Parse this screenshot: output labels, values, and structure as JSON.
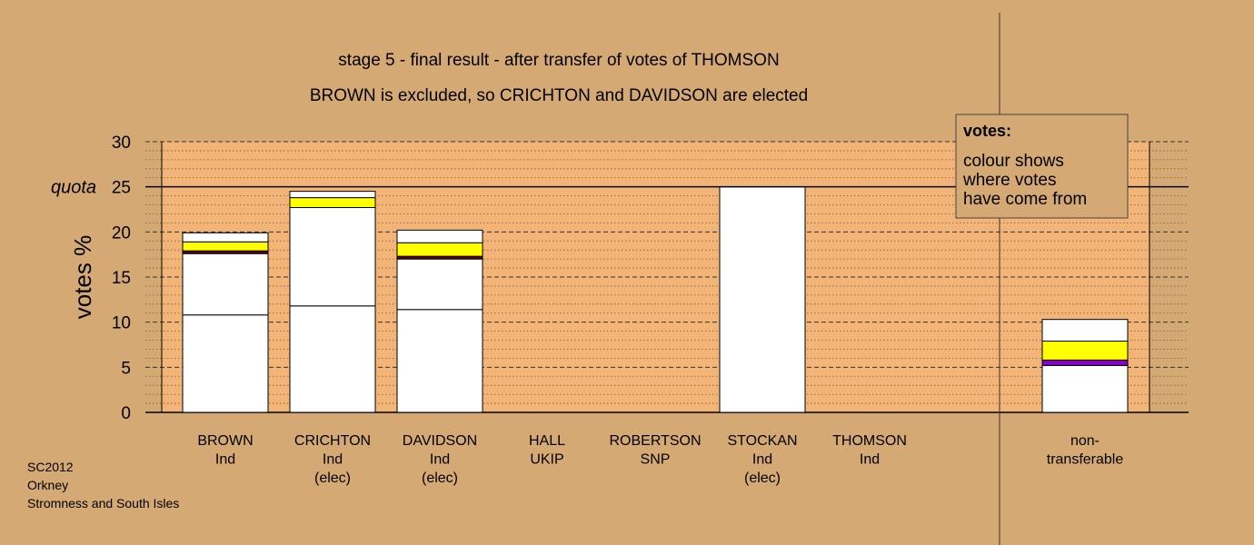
{
  "chart_data": {
    "type": "bar",
    "title": "stage 5 - final result - after transfer of votes of THOMSON",
    "subtitle": "BROWN is excluded, so CRICHTON and DAVIDSON are elected",
    "ylabel": "votes %",
    "ylim": [
      0,
      30
    ],
    "yticks": [
      0,
      5,
      10,
      15,
      20,
      25,
      30
    ],
    "quota": {
      "label": "quota",
      "value": 25
    },
    "grid": true,
    "legend": {
      "position": "top-right",
      "title": "votes:",
      "lines": [
        "colour shows",
        "where votes",
        "have come from"
      ]
    },
    "colors": {
      "background": "#d4a974",
      "plot": "#f2b477",
      "white": "#ffffff",
      "yellow": "#ffff00",
      "purple": "#8800cc",
      "darkred": "#660000"
    },
    "categories": [
      {
        "name": "BROWN",
        "party": "Ind",
        "status": ""
      },
      {
        "name": "CRICHTON",
        "party": "Ind",
        "status": "(elec)"
      },
      {
        "name": "DAVIDSON",
        "party": "Ind",
        "status": "(elec)"
      },
      {
        "name": "HALL",
        "party": "UKIP",
        "status": ""
      },
      {
        "name": "ROBERTSON",
        "party": "SNP",
        "status": ""
      },
      {
        "name": "STOCKAN",
        "party": "Ind",
        "status": "(elec)"
      },
      {
        "name": "THOMSON",
        "party": "Ind",
        "status": ""
      },
      {
        "name": "non-",
        "party": "transferable",
        "status": ""
      }
    ],
    "bars": [
      {
        "segments": [
          {
            "v": 10.8,
            "c": "white"
          },
          {
            "v": 6.8,
            "c": "white"
          },
          {
            "v": 0.3,
            "c": "darkred"
          },
          {
            "v": 1.0,
            "c": "yellow"
          },
          {
            "v": 1.0,
            "c": "white"
          }
        ]
      },
      {
        "segments": [
          {
            "v": 11.8,
            "c": "white"
          },
          {
            "v": 10.9,
            "c": "white"
          },
          {
            "v": 1.1,
            "c": "yellow"
          },
          {
            "v": 0.7,
            "c": "white"
          }
        ]
      },
      {
        "segments": [
          {
            "v": 11.4,
            "c": "white"
          },
          {
            "v": 5.6,
            "c": "white"
          },
          {
            "v": 0.3,
            "c": "darkred"
          },
          {
            "v": 1.5,
            "c": "yellow"
          },
          {
            "v": 1.4,
            "c": "white"
          }
        ]
      },
      {
        "segments": []
      },
      {
        "segments": []
      },
      {
        "segments": [
          {
            "v": 25.0,
            "c": "white"
          }
        ]
      },
      {
        "segments": []
      },
      {
        "segments": [
          {
            "v": 5.2,
            "c": "white"
          },
          {
            "v": 0.6,
            "c": "purple"
          },
          {
            "v": 2.1,
            "c": "yellow"
          },
          {
            "v": 2.4,
            "c": "white"
          }
        ]
      }
    ]
  },
  "footer": {
    "line1": "SC2012",
    "line2": "Orkney",
    "line3": "Stromness and South Isles"
  }
}
